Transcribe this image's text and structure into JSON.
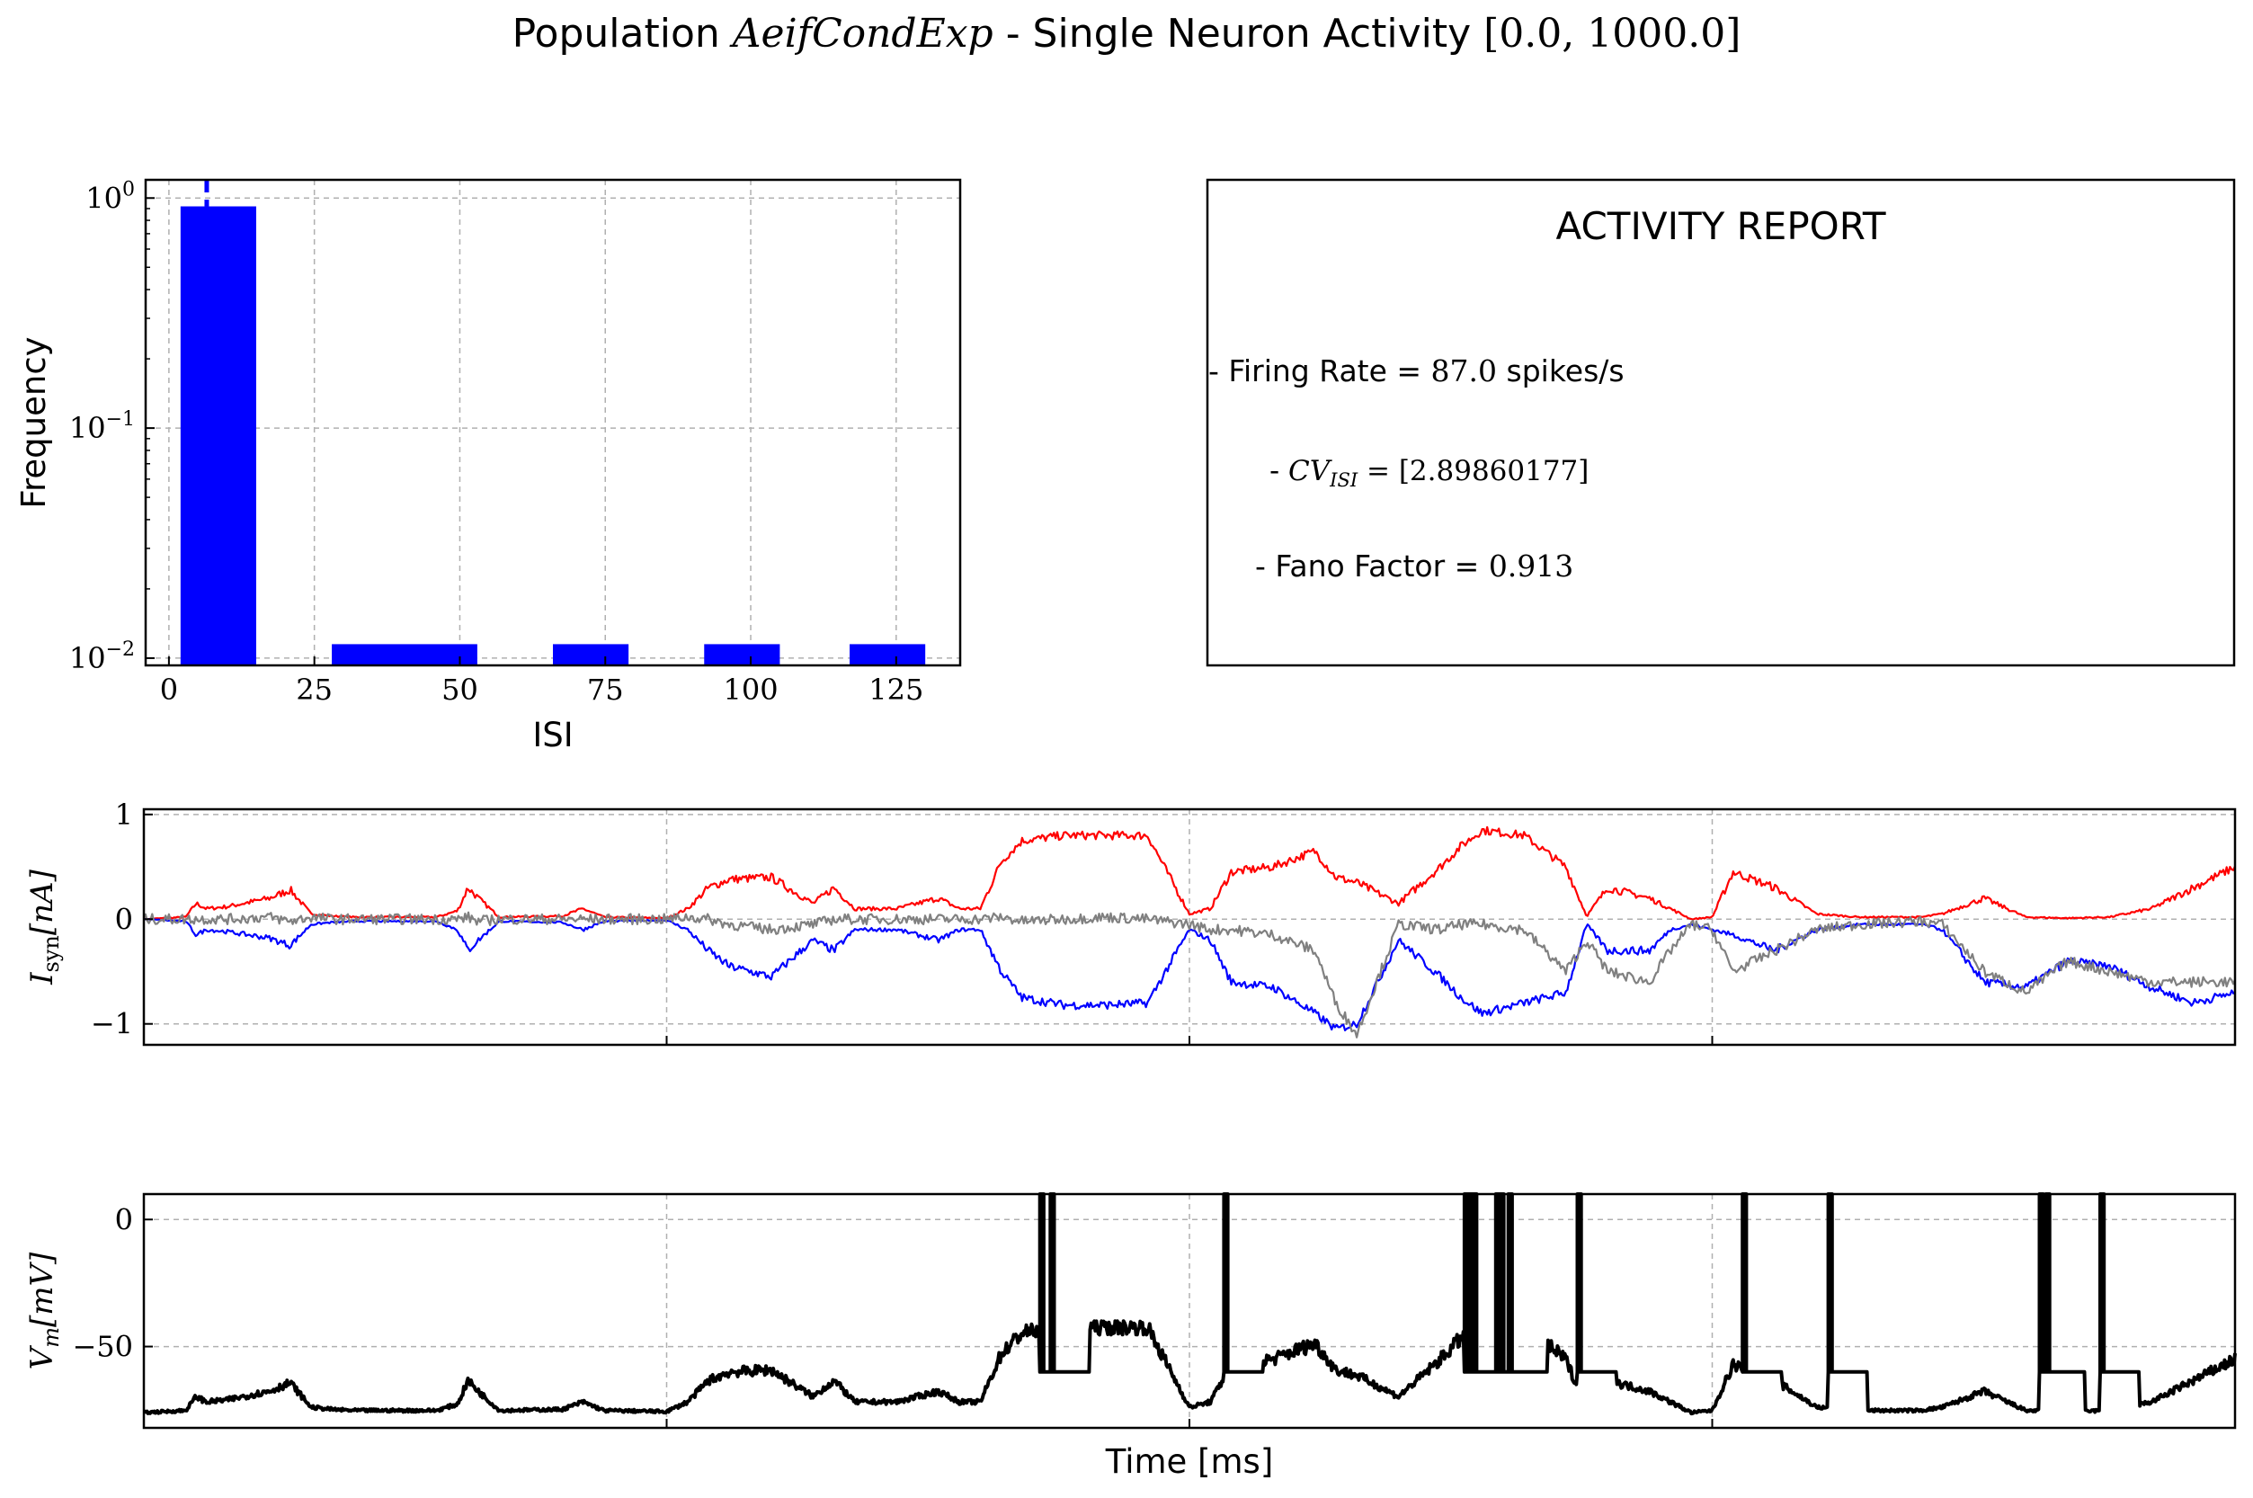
{
  "title": {
    "prefix": "Population ",
    "name": "AeifCondExp",
    "middle": " - Single Neuron Activity ",
    "range": "[0.0, 1000.0]"
  },
  "colors": {
    "exc": "#ff0000",
    "inh": "#0000ff",
    "total": "#808080",
    "vm": "#000000",
    "hist": "#0000ff",
    "grid": "#b0b0b0"
  },
  "chart_data": [
    {
      "type": "bar",
      "panel": "isi-histogram",
      "xlabel": "ISI",
      "ylabel": "Frequency",
      "yscale": "log",
      "xlim": [
        -4,
        136
      ],
      "ylim": [
        0.0093,
        1.2
      ],
      "xticks": [
        0,
        25,
        50,
        75,
        100,
        125
      ],
      "yticks": [
        {
          "value": 1,
          "base": "10",
          "exp": "0"
        },
        {
          "value": 0.1,
          "base": "10",
          "exp": "−1"
        },
        {
          "value": 0.01,
          "base": "10",
          "exp": "−2"
        }
      ],
      "bins": [
        {
          "x0": 2,
          "x1": 15,
          "value": 0.92
        },
        {
          "x0": 28,
          "x1": 53,
          "value": 0.0115
        },
        {
          "x0": 66,
          "x1": 79,
          "value": 0.0115
        },
        {
          "x0": 92,
          "x1": 105,
          "value": 0.0115
        },
        {
          "x0": 117,
          "x1": 130,
          "value": 0.0115
        }
      ],
      "mean_isi": 6.5,
      "grid": true
    },
    {
      "type": "line",
      "panel": "synaptic-currents",
      "ylabel_main": "I",
      "ylabel_sub": "syn",
      "ylabel_unit": "[nA]",
      "xlim": [
        0,
        1000
      ],
      "ylim": [
        -1.2,
        1.05
      ],
      "yticks": [
        1,
        0,
        -1
      ],
      "ytick_labels": [
        "1",
        "0",
        "−1"
      ],
      "xgrid": [
        250,
        500,
        750
      ],
      "grid": true,
      "series": [
        {
          "key": "exc",
          "x": [
            0,
            20,
            25,
            30,
            40,
            60,
            70,
            80,
            90,
            100,
            140,
            150,
            155,
            160,
            170,
            200,
            210,
            220,
            250,
            260,
            270,
            280,
            300,
            320,
            330,
            340,
            360,
            380,
            390,
            400,
            410,
            420,
            440,
            460,
            480,
            500,
            510,
            520,
            540,
            560,
            570,
            580,
            600,
            620,
            630,
            640,
            660,
            680,
            690,
            700,
            720,
            730,
            740,
            750,
            760,
            780,
            800,
            820,
            840,
            850,
            860,
            880,
            900,
            920,
            940,
            960,
            980,
            1000
          ],
          "y": [
            0,
            0.02,
            0.15,
            0.1,
            0.12,
            0.2,
            0.28,
            0.05,
            0.03,
            0.02,
            0.02,
            0.08,
            0.3,
            0.2,
            0.02,
            0.03,
            0.1,
            0.02,
            0.01,
            0.1,
            0.3,
            0.38,
            0.4,
            0.15,
            0.3,
            0.1,
            0.1,
            0.2,
            0.1,
            0.1,
            0.55,
            0.75,
            0.8,
            0.8,
            0.8,
            0.05,
            0.1,
            0.45,
            0.5,
            0.65,
            0.4,
            0.35,
            0.15,
            0.5,
            0.7,
            0.85,
            0.8,
            0.5,
            0.03,
            0.3,
            0.2,
            0.1,
            0.0,
            0.02,
            0.45,
            0.3,
            0.05,
            0.02,
            0.02,
            0.02,
            0.05,
            0.2,
            0.02,
            0.01,
            0.02,
            0.1,
            0.3,
            0.5
          ]
        },
        {
          "key": "inh",
          "x": [
            0,
            20,
            25,
            30,
            40,
            60,
            70,
            80,
            90,
            100,
            140,
            150,
            155,
            160,
            170,
            200,
            210,
            220,
            250,
            260,
            270,
            280,
            300,
            320,
            330,
            340,
            360,
            380,
            390,
            400,
            410,
            420,
            440,
            460,
            480,
            500,
            510,
            520,
            540,
            560,
            570,
            580,
            600,
            620,
            630,
            640,
            660,
            680,
            690,
            700,
            720,
            730,
            740,
            750,
            760,
            780,
            800,
            820,
            840,
            850,
            860,
            880,
            900,
            920,
            940,
            960,
            980,
            1000
          ],
          "y": [
            0,
            -0.02,
            -0.15,
            -0.1,
            -0.12,
            -0.18,
            -0.25,
            -0.05,
            -0.03,
            -0.02,
            -0.02,
            -0.1,
            -0.3,
            -0.2,
            -0.02,
            -0.03,
            -0.1,
            -0.02,
            -0.01,
            -0.1,
            -0.3,
            -0.45,
            -0.55,
            -0.2,
            -0.3,
            -0.1,
            -0.1,
            -0.2,
            -0.1,
            -0.1,
            -0.5,
            -0.75,
            -0.82,
            -0.82,
            -0.8,
            -0.1,
            -0.2,
            -0.6,
            -0.65,
            -0.9,
            -1.05,
            -1.0,
            -0.2,
            -0.55,
            -0.75,
            -0.9,
            -0.8,
            -0.7,
            -0.05,
            -0.3,
            -0.3,
            -0.1,
            -0.05,
            -0.1,
            -0.15,
            -0.3,
            -0.1,
            -0.05,
            -0.05,
            -0.05,
            -0.1,
            -0.6,
            -0.65,
            -0.4,
            -0.45,
            -0.65,
            -0.8,
            -0.7
          ]
        },
        {
          "key": "total",
          "x": [
            0,
            20,
            25,
            30,
            40,
            60,
            70,
            80,
            90,
            100,
            140,
            150,
            155,
            160,
            170,
            200,
            210,
            220,
            250,
            260,
            270,
            280,
            300,
            320,
            330,
            340,
            360,
            380,
            390,
            400,
            410,
            420,
            440,
            460,
            480,
            500,
            510,
            520,
            540,
            560,
            570,
            580,
            600,
            620,
            630,
            640,
            660,
            680,
            690,
            700,
            720,
            730,
            740,
            750,
            760,
            780,
            800,
            820,
            840,
            850,
            860,
            880,
            900,
            920,
            940,
            960,
            980,
            1000
          ],
          "y": [
            0,
            0,
            0,
            0,
            0,
            0.02,
            -0.02,
            0.02,
            0,
            0,
            0,
            0,
            0.02,
            -0.02,
            0,
            0,
            0,
            0,
            0,
            0.02,
            0,
            -0.05,
            -0.1,
            -0.05,
            0,
            0,
            0,
            0,
            0,
            0,
            0.02,
            -0.02,
            0,
            0.02,
            0,
            -0.05,
            -0.1,
            -0.1,
            -0.15,
            -0.3,
            -0.8,
            -1.1,
            -0.05,
            -0.1,
            -0.05,
            -0.05,
            -0.1,
            -0.5,
            -0.2,
            -0.5,
            -0.6,
            -0.3,
            -0.05,
            -0.1,
            -0.5,
            -0.3,
            -0.1,
            -0.05,
            -0.03,
            -0.02,
            -0.05,
            -0.5,
            -0.7,
            -0.4,
            -0.5,
            -0.6,
            -0.6,
            -0.6
          ]
        }
      ]
    },
    {
      "type": "line",
      "panel": "membrane-potential",
      "ylabel_main": "V",
      "ylabel_sub": "m",
      "ylabel_unit": "[mV]",
      "xlabel": "Time [ms]",
      "xlim": [
        0,
        1000
      ],
      "ylim": [
        -82,
        10
      ],
      "yticks": [
        0,
        -50
      ],
      "ytick_labels": [
        "0",
        "−50"
      ],
      "xgrid": [
        250,
        500,
        750
      ],
      "grid": true,
      "rest": -76,
      "threshold_plateau": -60,
      "spike_peak": 10,
      "spikes": [
        429,
        434,
        517,
        632,
        634,
        636,
        647,
        649,
        653,
        686,
        765,
        806,
        907,
        910,
        936
      ]
    }
  ],
  "report": {
    "title": "ACTIVITY REPORT",
    "firing_rate_label": "- Firing Rate = ",
    "firing_rate_value": "87.0",
    "firing_rate_unit": " spikes/s",
    "cv_label": "- ",
    "cv_symbol": "CV",
    "cv_sub": "ISI",
    "cv_value": " = [2.89860177]",
    "fano_label": "- Fano Factor = ",
    "fano_value": "0.913"
  }
}
